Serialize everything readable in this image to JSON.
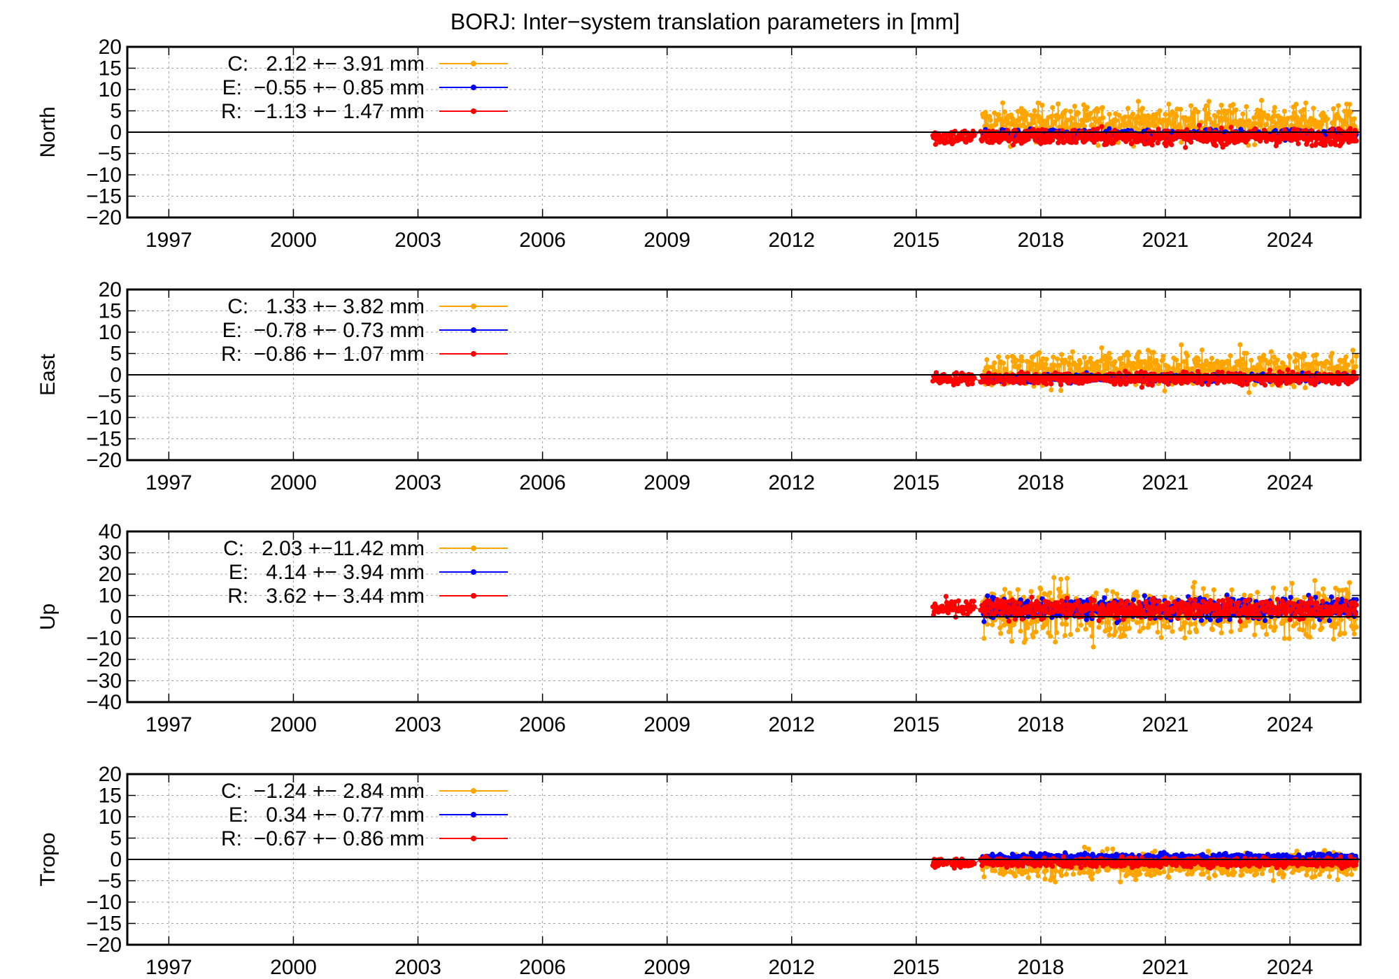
{
  "chart_data": {
    "type": "scatter",
    "title": "BORJ: Inter−system translation parameters in [mm]",
    "xlabel": "",
    "x_ticks": [
      "1997",
      "2000",
      "2003",
      "2006",
      "2009",
      "2012",
      "2015",
      "2018",
      "2021",
      "2024"
    ],
    "xlim": [
      1996,
      2025.7
    ],
    "grid": true,
    "legend_position": "top-left",
    "colors": {
      "C": "#ffa500",
      "E": "#0000ff",
      "R": "#ff0000"
    },
    "series_markers": "points connected by lines",
    "panels": [
      {
        "ylabel": "North",
        "ylim": [
          -20,
          20
        ],
        "y_ticks": [
          "20",
          "15",
          "10",
          "5",
          "0",
          "−5",
          "−10",
          "−15",
          "−20"
        ],
        "legend": [
          {
            "key": "C",
            "label": "C:   2.12 +− 3.91 mm"
          },
          {
            "key": "E",
            "label": "E:  −0.55 +− 0.85 mm"
          },
          {
            "key": "R",
            "label": "R:  −1.13 +− 1.47 mm"
          }
        ],
        "series": [
          {
            "name": "C",
            "mean": 2.12,
            "sigma": 3.91,
            "data_range": [
              2016.6,
              2025.6
            ]
          },
          {
            "name": "E",
            "mean": -0.55,
            "sigma": 0.85,
            "data_range": [
              2016.6,
              2025.6
            ]
          },
          {
            "name": "R",
            "mean": -1.13,
            "sigma": 1.47,
            "data_range": [
              2015.4,
              2025.6
            ]
          }
        ]
      },
      {
        "ylabel": "East",
        "ylim": [
          -20,
          20
        ],
        "y_ticks": [
          "20",
          "15",
          "10",
          "5",
          "0",
          "−5",
          "−10",
          "−15",
          "−20"
        ],
        "legend": [
          {
            "key": "C",
            "label": "C:   1.33 +− 3.82 mm"
          },
          {
            "key": "E",
            "label": "E:  −0.78 +− 0.73 mm"
          },
          {
            "key": "R",
            "label": "R:  −0.86 +− 1.07 mm"
          }
        ],
        "series": [
          {
            "name": "C",
            "mean": 1.33,
            "sigma": 3.82,
            "data_range": [
              2016.6,
              2025.6
            ]
          },
          {
            "name": "E",
            "mean": -0.78,
            "sigma": 0.73,
            "data_range": [
              2016.6,
              2025.6
            ]
          },
          {
            "name": "R",
            "mean": -0.86,
            "sigma": 1.07,
            "data_range": [
              2015.4,
              2025.6
            ]
          }
        ]
      },
      {
        "ylabel": "Up",
        "ylim": [
          -40,
          40
        ],
        "y_ticks": [
          "40",
          "30",
          "20",
          "10",
          "0",
          "−10",
          "−20",
          "−30",
          "−40"
        ],
        "legend": [
          {
            "key": "C",
            "label": "C:   2.03 +−11.42 mm"
          },
          {
            "key": "E",
            "label": "E:   4.14 +− 3.94 mm"
          },
          {
            "key": "R",
            "label": "R:   3.62 +− 3.44 mm"
          }
        ],
        "series": [
          {
            "name": "C",
            "mean": 2.03,
            "sigma": 11.42,
            "data_range": [
              2016.6,
              2025.6
            ]
          },
          {
            "name": "E",
            "mean": 4.14,
            "sigma": 3.94,
            "data_range": [
              2016.6,
              2025.6
            ]
          },
          {
            "name": "R",
            "mean": 3.62,
            "sigma": 3.44,
            "data_range": [
              2015.4,
              2025.6
            ]
          }
        ]
      },
      {
        "ylabel": "Tropo",
        "ylim": [
          -20,
          20
        ],
        "y_ticks": [
          "20",
          "15",
          "10",
          "5",
          "0",
          "−5",
          "−10",
          "−15",
          "−20"
        ],
        "legend": [
          {
            "key": "C",
            "label": "C:  −1.24 +− 2.84 mm"
          },
          {
            "key": "E",
            "label": "E:   0.34 +− 0.77 mm"
          },
          {
            "key": "R",
            "label": "R:  −0.67 +− 0.86 mm"
          }
        ],
        "series": [
          {
            "name": "C",
            "mean": -1.24,
            "sigma": 2.84,
            "data_range": [
              2016.6,
              2025.6
            ]
          },
          {
            "name": "E",
            "mean": 0.34,
            "sigma": 0.77,
            "data_range": [
              2016.6,
              2025.6
            ]
          },
          {
            "name": "R",
            "mean": -0.67,
            "sigma": 0.86,
            "data_range": [
              2015.4,
              2025.6
            ]
          }
        ]
      }
    ]
  }
}
